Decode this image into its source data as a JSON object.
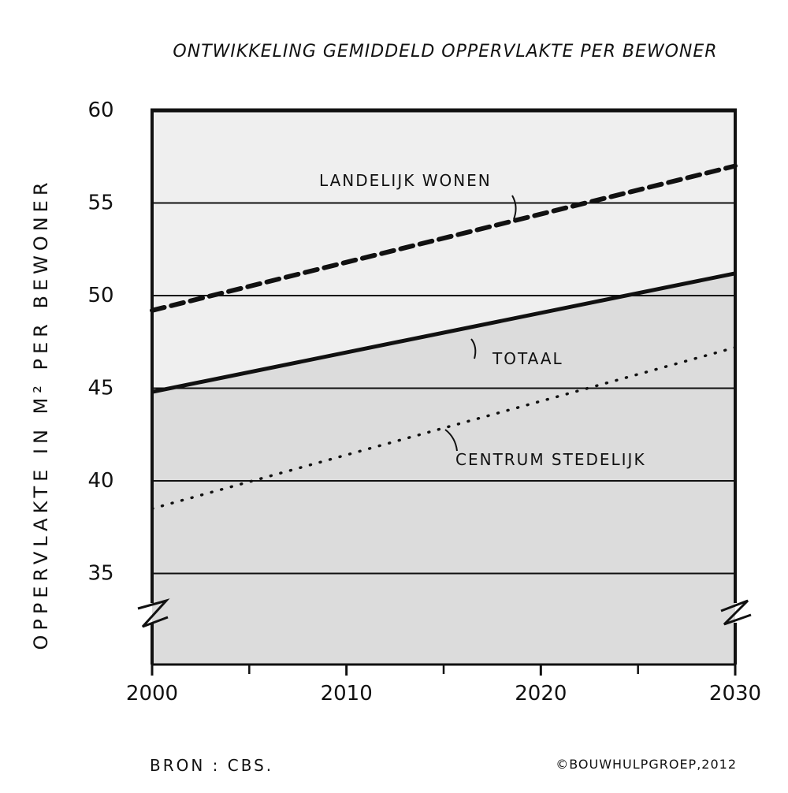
{
  "chart_data": {
    "type": "line",
    "title": "ONTWIKKELING GEMIDDELD OPPERVLAKTE PER BEWONER",
    "ylabel": "OPPERVLAKTE IN M² PER BEWONER",
    "xlabel": "",
    "xlim": [
      2000,
      2030
    ],
    "ylim": [
      30,
      60
    ],
    "x_ticks": [
      2000,
      2010,
      2020,
      2030
    ],
    "x_minor_ticks": [
      2005,
      2015,
      2025
    ],
    "y_ticks": [
      35,
      40,
      45,
      50,
      55,
      60
    ],
    "y_axis_break": true,
    "grid": "horizontal",
    "series": [
      {
        "name": "LANDELIJK WONEN",
        "style": "dashed-bold",
        "x": [
          2000,
          2030
        ],
        "values": [
          49.2,
          57.0
        ]
      },
      {
        "name": "TOTAAL",
        "style": "solid-bold",
        "x": [
          2000,
          2030
        ],
        "values": [
          44.8,
          51.2
        ]
      },
      {
        "name": "CENTRUM STEDELIJK",
        "style": "dotted",
        "x": [
          2000,
          2030
        ],
        "values": [
          38.5,
          47.2
        ]
      }
    ],
    "source": "BRON : CBS.",
    "credit": "©BOUWHULPGROEP,2012"
  },
  "colors": {
    "background": "#ffffff",
    "plot_fill_light": "#efefef",
    "plot_fill_dark": "#dcdcdc",
    "ink": "#111111"
  }
}
